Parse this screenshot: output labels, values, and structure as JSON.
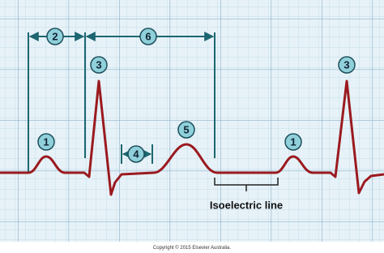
{
  "labels": {
    "p_wave_1": "1",
    "p_wave_2": "1",
    "pr_interval": "2",
    "r_peak_1": "3",
    "r_peak_2": "3",
    "st_segment": "4",
    "t_wave": "5",
    "qt_span": "6",
    "isoelectric": "Isoelectric line"
  },
  "footer": {
    "copyright": "Copyright © 2015 Elsevier Australia."
  }
}
